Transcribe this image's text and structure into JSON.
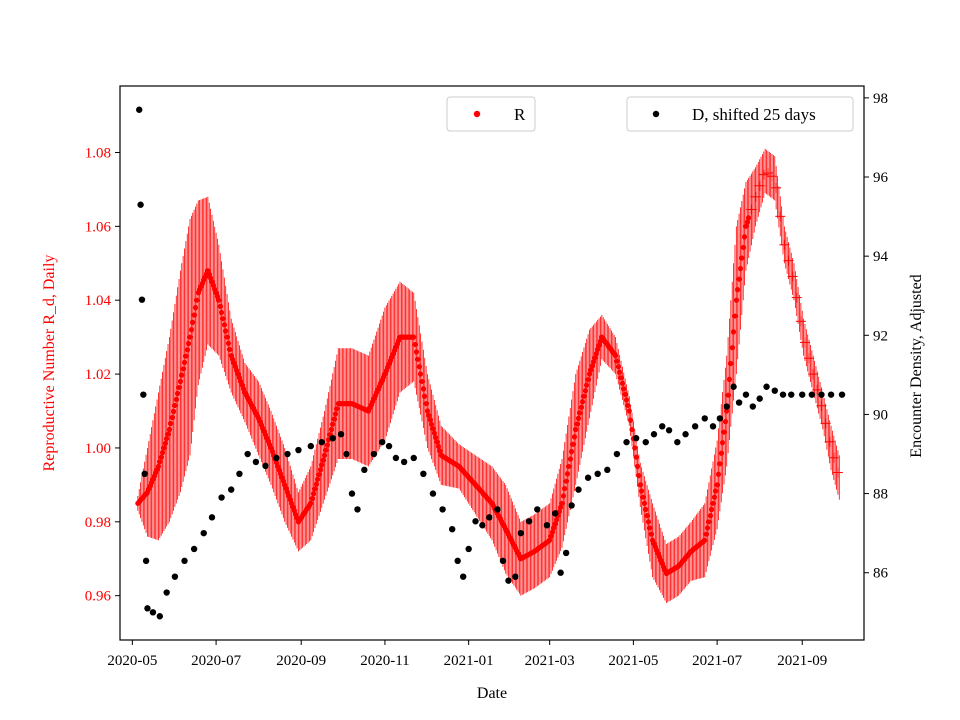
{
  "chart_data": {
    "type": "scatter",
    "title": "",
    "xlabel": "Date",
    "ylabel_left": "Reproductive Number R_d, Daily",
    "ylabel_right": "Encounter Density, Adjusted",
    "colors": {
      "R": "#ff0000",
      "D": "#000000",
      "axis": "#000000"
    },
    "x_range": [
      "2020-04-22",
      "2021-10-16"
    ],
    "ylim_left": [
      0.948,
      1.098
    ],
    "ylim_right": [
      84.3,
      98.3
    ],
    "x_ticks": [
      "2020-05",
      "2020-07",
      "2020-09",
      "2020-11",
      "2021-01",
      "2021-03",
      "2021-05",
      "2021-07",
      "2021-09"
    ],
    "y_ticks_left": [
      "0.96",
      "0.98",
      "1.00",
      "1.02",
      "1.04",
      "1.06",
      "1.08"
    ],
    "y_ticks_right": [
      "86",
      "88",
      "90",
      "92",
      "94",
      "96",
      "98"
    ],
    "legend": [
      {
        "label": "R",
        "position": "top-center"
      },
      {
        "label": "D, shifted 25 days",
        "position": "top-right"
      }
    ],
    "series_R": {
      "name": "R",
      "axis": "left",
      "marker": "dot with vertical error bars, later crosses",
      "points": [
        [
          "2020-05-05",
          0.985,
          0.002
        ],
        [
          "2020-05-12",
          0.988,
          0.012
        ],
        [
          "2020-05-20",
          0.995,
          0.02
        ],
        [
          "2020-05-28",
          1.005,
          0.025
        ],
        [
          "2020-06-05",
          1.018,
          0.03
        ],
        [
          "2020-06-12",
          1.03,
          0.032
        ],
        [
          "2020-06-18",
          1.042,
          0.025
        ],
        [
          "2020-06-25",
          1.048,
          0.02
        ],
        [
          "2020-07-03",
          1.04,
          0.015
        ],
        [
          "2020-07-12",
          1.025,
          0.01
        ],
        [
          "2020-07-22",
          1.015,
          0.008
        ],
        [
          "2020-08-01",
          1.008,
          0.01
        ],
        [
          "2020-08-10",
          1.0,
          0.01
        ],
        [
          "2020-08-20",
          0.99,
          0.01
        ],
        [
          "2020-08-30",
          0.98,
          0.008
        ],
        [
          "2020-09-08",
          0.985,
          0.01
        ],
        [
          "2020-09-18",
          0.998,
          0.012
        ],
        [
          "2020-09-28",
          1.012,
          0.015
        ],
        [
          "2020-10-08",
          1.012,
          0.015
        ],
        [
          "2020-10-20",
          1.01,
          0.015
        ],
        [
          "2020-11-01",
          1.02,
          0.018
        ],
        [
          "2020-11-12",
          1.03,
          0.015
        ],
        [
          "2020-11-22",
          1.03,
          0.012
        ],
        [
          "2020-12-02",
          1.01,
          0.01
        ],
        [
          "2020-12-12",
          0.998,
          0.008
        ],
        [
          "2020-12-25",
          0.995,
          0.006
        ],
        [
          "2021-01-06",
          0.99,
          0.008
        ],
        [
          "2021-01-18",
          0.985,
          0.01
        ],
        [
          "2021-01-28",
          0.978,
          0.012
        ],
        [
          "2021-02-08",
          0.97,
          0.01
        ],
        [
          "2021-02-18",
          0.972,
          0.01
        ],
        [
          "2021-03-01",
          0.975,
          0.01
        ],
        [
          "2021-03-10",
          0.985,
          0.012
        ],
        [
          "2021-03-20",
          1.005,
          0.015
        ],
        [
          "2021-03-30",
          1.02,
          0.012
        ],
        [
          "2021-04-08",
          1.03,
          0.006
        ],
        [
          "2021-04-18",
          1.025,
          0.005
        ],
        [
          "2021-04-28",
          1.01,
          0.004
        ],
        [
          "2021-05-06",
          0.99,
          0.006
        ],
        [
          "2021-05-15",
          0.975,
          0.01
        ],
        [
          "2021-05-25",
          0.966,
          0.008
        ],
        [
          "2021-06-03",
          0.968,
          0.008
        ],
        [
          "2021-06-12",
          0.972,
          0.008
        ],
        [
          "2021-06-22",
          0.975,
          0.01
        ],
        [
          "2021-07-01",
          0.99,
          0.012
        ],
        [
          "2021-07-08",
          1.01,
          0.015
        ],
        [
          "2021-07-15",
          1.04,
          0.02
        ],
        [
          "2021-07-22",
          1.06,
          0.012
        ],
        [
          "2021-07-29",
          1.068,
          0.008
        ],
        [
          "2021-08-05",
          1.075,
          0.006
        ],
        [
          "2021-08-12",
          1.073,
          0.006
        ],
        [
          "2021-08-19",
          1.055,
          0.005
        ],
        [
          "2021-08-26",
          1.045,
          0.005
        ],
        [
          "2021-09-02",
          1.03,
          0.005
        ],
        [
          "2021-09-09",
          1.02,
          0.005
        ],
        [
          "2021-09-16",
          1.01,
          0.005
        ],
        [
          "2021-09-22",
          1.0,
          0.006
        ],
        [
          "2021-09-28",
          0.992,
          0.006
        ]
      ]
    },
    "series_D": {
      "name": "D, shifted 25 days",
      "axis": "right",
      "marker": "dot",
      "points": [
        [
          "2020-05-06",
          97.7
        ],
        [
          "2020-05-07",
          95.3
        ],
        [
          "2020-05-08",
          92.9
        ],
        [
          "2020-05-09",
          90.5
        ],
        [
          "2020-05-10",
          88.5
        ],
        [
          "2020-05-11",
          86.3
        ],
        [
          "2020-05-12",
          85.1
        ],
        [
          "2020-05-16",
          85.0
        ],
        [
          "2020-05-21",
          84.9
        ],
        [
          "2020-05-26",
          85.5
        ],
        [
          "2020-06-01",
          85.9
        ],
        [
          "2020-06-08",
          86.3
        ],
        [
          "2020-06-15",
          86.6
        ],
        [
          "2020-06-22",
          87.0
        ],
        [
          "2020-06-28",
          87.4
        ],
        [
          "2020-07-05",
          87.9
        ],
        [
          "2020-07-12",
          88.1
        ],
        [
          "2020-07-18",
          88.5
        ],
        [
          "2020-07-24",
          89.0
        ],
        [
          "2020-07-30",
          88.8
        ],
        [
          "2020-08-06",
          88.7
        ],
        [
          "2020-08-14",
          88.9
        ],
        [
          "2020-08-22",
          89.0
        ],
        [
          "2020-08-30",
          89.1
        ],
        [
          "2020-09-08",
          89.2
        ],
        [
          "2020-09-16",
          89.3
        ],
        [
          "2020-09-24",
          89.4
        ],
        [
          "2020-09-30",
          89.5
        ],
        [
          "2020-10-04",
          89.0
        ],
        [
          "2020-10-08",
          88.0
        ],
        [
          "2020-10-12",
          87.6
        ],
        [
          "2020-10-17",
          88.6
        ],
        [
          "2020-10-24",
          89.0
        ],
        [
          "2020-10-30",
          89.3
        ],
        [
          "2020-11-04",
          89.2
        ],
        [
          "2020-11-09",
          88.9
        ],
        [
          "2020-11-15",
          88.8
        ],
        [
          "2020-11-22",
          88.9
        ],
        [
          "2020-11-29",
          88.5
        ],
        [
          "2020-12-06",
          88.0
        ],
        [
          "2020-12-13",
          87.6
        ],
        [
          "2020-12-20",
          87.1
        ],
        [
          "2020-12-24",
          86.3
        ],
        [
          "2020-12-28",
          85.9
        ],
        [
          "2021-01-01",
          86.6
        ],
        [
          "2021-01-06",
          87.3
        ],
        [
          "2021-01-11",
          87.2
        ],
        [
          "2021-01-16",
          87.4
        ],
        [
          "2021-01-22",
          87.6
        ],
        [
          "2021-01-26",
          86.3
        ],
        [
          "2021-01-30",
          85.8
        ],
        [
          "2021-02-04",
          85.9
        ],
        [
          "2021-02-08",
          87.0
        ],
        [
          "2021-02-14",
          87.3
        ],
        [
          "2021-02-20",
          87.6
        ],
        [
          "2021-02-27",
          87.2
        ],
        [
          "2021-03-05",
          87.5
        ],
        [
          "2021-03-09",
          86.0
        ],
        [
          "2021-03-13",
          86.5
        ],
        [
          "2021-03-17",
          87.7
        ],
        [
          "2021-03-22",
          88.1
        ],
        [
          "2021-03-29",
          88.4
        ],
        [
          "2021-04-05",
          88.5
        ],
        [
          "2021-04-12",
          88.6
        ],
        [
          "2021-04-19",
          89.0
        ],
        [
          "2021-04-26",
          89.3
        ],
        [
          "2021-05-03",
          89.4
        ],
        [
          "2021-05-10",
          89.3
        ],
        [
          "2021-05-16",
          89.5
        ],
        [
          "2021-05-22",
          89.7
        ],
        [
          "2021-05-27",
          89.6
        ],
        [
          "2021-06-02",
          89.3
        ],
        [
          "2021-06-08",
          89.5
        ],
        [
          "2021-06-15",
          89.7
        ],
        [
          "2021-06-22",
          89.9
        ],
        [
          "2021-06-28",
          89.7
        ],
        [
          "2021-07-03",
          89.9
        ],
        [
          "2021-07-08",
          90.2
        ],
        [
          "2021-07-13",
          90.7
        ],
        [
          "2021-07-17",
          90.3
        ],
        [
          "2021-07-22",
          90.5
        ],
        [
          "2021-07-27",
          90.2
        ],
        [
          "2021-08-01",
          90.4
        ],
        [
          "2021-08-06",
          90.7
        ],
        [
          "2021-08-12",
          90.6
        ],
        [
          "2021-08-18",
          90.5
        ],
        [
          "2021-08-24",
          90.5
        ],
        [
          "2021-09-01",
          90.5
        ],
        [
          "2021-09-08",
          90.5
        ],
        [
          "2021-09-15",
          90.5
        ],
        [
          "2021-09-22",
          90.5
        ],
        [
          "2021-09-30",
          90.5
        ]
      ]
    }
  }
}
